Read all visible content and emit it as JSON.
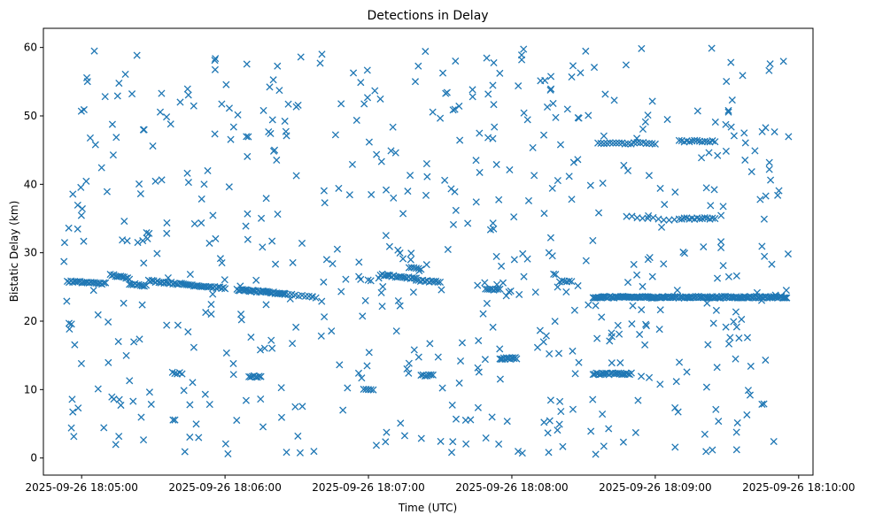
{
  "chart_data": {
    "type": "scatter",
    "title": "Detections in Delay",
    "xlabel": "Time (UTC)",
    "ylabel": "Bistatic Delay (km)",
    "marker": "x",
    "color": "#1f77b4",
    "xlim": [
      "2025-09-26 18:04:44",
      "2025-09-26 18:10:06"
    ],
    "ylim": [
      -2.5,
      62.8
    ],
    "x_ticks": [
      "2025-09-26 18:05:00",
      "2025-09-26 18:06:00",
      "2025-09-26 18:07:00",
      "2025-09-26 18:08:00",
      "2025-09-26 18:09:00",
      "2025-09-26 18:10:00"
    ],
    "y_ticks": [
      0,
      10,
      20,
      30,
      40,
      50,
      60
    ],
    "grid": false,
    "legend": "none",
    "tracks": [
      {
        "start": "2025-09-26 18:04:54",
        "end": "2025-09-26 18:05:10",
        "y_start": 25.8,
        "y_end": 25.5,
        "count": 22
      },
      {
        "start": "2025-09-26 18:05:12",
        "end": "2025-09-26 18:05:20",
        "y_start": 26.8,
        "y_end": 26.2,
        "count": 12
      },
      {
        "start": "2025-09-26 18:05:20",
        "end": "2025-09-26 18:05:27",
        "y_start": 25.5,
        "y_end": 25.2,
        "count": 10
      },
      {
        "start": "2025-09-26 18:05:28",
        "end": "2025-09-26 18:06:00",
        "y_start": 25.9,
        "y_end": 24.8,
        "count": 45
      },
      {
        "start": "2025-09-26 18:06:05",
        "end": "2025-09-26 18:06:25",
        "y_start": 24.6,
        "y_end": 24.0,
        "count": 35
      },
      {
        "start": "2025-09-26 18:06:25",
        "end": "2025-09-26 18:06:38",
        "y_start": 24.0,
        "y_end": 23.5,
        "count": 10
      },
      {
        "start": "2025-09-26 18:06:10",
        "end": "2025-09-26 18:06:15",
        "y_start": 11.9,
        "y_end": 11.9,
        "count": 8
      },
      {
        "start": "2025-09-26 18:05:38",
        "end": "2025-09-26 18:05:42",
        "y_start": 12.4,
        "y_end": 12.4,
        "count": 5
      },
      {
        "start": "2025-09-26 18:07:05",
        "end": "2025-09-26 18:07:20",
        "y_start": 26.8,
        "y_end": 26.2,
        "count": 20
      },
      {
        "start": "2025-09-26 18:07:20",
        "end": "2025-09-26 18:07:30",
        "y_start": 26.0,
        "y_end": 25.7,
        "count": 12
      },
      {
        "start": "2025-09-26 18:07:17",
        "end": "2025-09-26 18:07:22",
        "y_start": 27.8,
        "y_end": 27.6,
        "count": 6
      },
      {
        "start": "2025-09-26 18:07:22",
        "end": "2025-09-26 18:07:27",
        "y_start": 12.1,
        "y_end": 12.1,
        "count": 7
      },
      {
        "start": "2025-09-26 18:06:58",
        "end": "2025-09-26 18:07:02",
        "y_start": 10.0,
        "y_end": 10.0,
        "count": 5
      },
      {
        "start": "2025-09-26 18:07:49",
        "end": "2025-09-26 18:07:55",
        "y_start": 24.6,
        "y_end": 24.6,
        "count": 8
      },
      {
        "start": "2025-09-26 18:07:55",
        "end": "2025-09-26 18:08:02",
        "y_start": 14.5,
        "y_end": 14.6,
        "count": 14
      },
      {
        "start": "2025-09-26 18:08:20",
        "end": "2025-09-26 18:08:25",
        "y_start": 25.8,
        "y_end": 25.8,
        "count": 6
      },
      {
        "start": "2025-09-26 18:08:34",
        "end": "2025-09-26 18:09:55",
        "y_start": 23.5,
        "y_end": 23.5,
        "count": 150
      },
      {
        "start": "2025-09-26 18:08:34",
        "end": "2025-09-26 18:08:50",
        "y_start": 12.3,
        "y_end": 12.3,
        "count": 25
      },
      {
        "start": "2025-09-26 18:08:36",
        "end": "2025-09-26 18:09:00",
        "y_start": 46.0,
        "y_end": 46.0,
        "count": 20
      },
      {
        "start": "2025-09-26 18:09:10",
        "end": "2025-09-26 18:09:25",
        "y_start": 46.3,
        "y_end": 46.3,
        "count": 15
      },
      {
        "start": "2025-09-26 18:09:10",
        "end": "2025-09-26 18:09:25",
        "y_start": 35.0,
        "y_end": 35.0,
        "count": 15
      },
      {
        "start": "2025-09-26 18:08:48",
        "end": "2025-09-26 18:09:08",
        "y_start": 35.3,
        "y_end": 34.8,
        "count": 10
      }
    ],
    "scatter_count": 600,
    "scatter_xlim": [
      "2025-09-26 18:04:52",
      "2025-09-26 18:09:57"
    ],
    "scatter_ylim": [
      0.5,
      60
    ]
  }
}
